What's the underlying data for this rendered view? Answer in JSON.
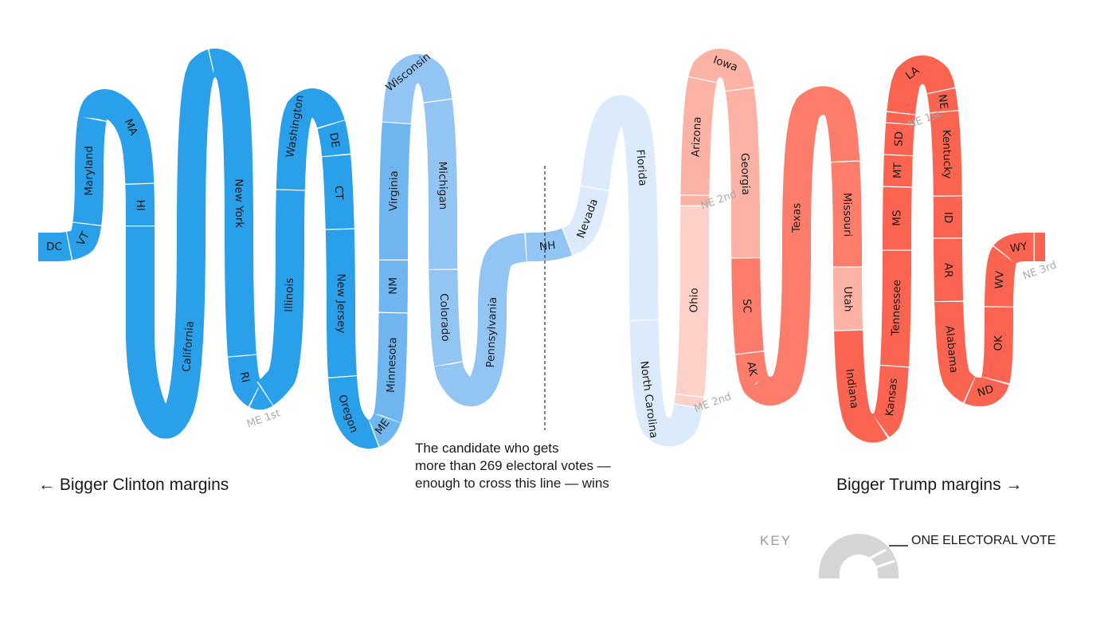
{
  "captions": {
    "left": "← Bigger Clinton margins",
    "right": "Bigger Trump margins →",
    "note": [
      "The candidate who gets",
      "more than 269 electoral votes —",
      "enough to cross this line — wins"
    ]
  },
  "key": {
    "label": "KEY",
    "one_vote": "ONE ELECTORAL VOTE"
  },
  "colors": {
    "dem_strong": "#2aa0ea",
    "dem_lean": "#6fb5ef",
    "dem_tilt": "#92c4f4",
    "tossup_dem": "#dcebfb",
    "tossup_rep": "#fdd0c8",
    "rep_tilt": "#fcb2a5",
    "rep_lean": "#fd7d6c",
    "rep_strong": "#fa6450",
    "key": "#d6d6d6"
  },
  "states": [
    {
      "name": "DC",
      "votes": 3,
      "color": "#2aa0ea"
    },
    {
      "name": "VT",
      "votes": 3,
      "color": "#2aa0ea"
    },
    {
      "name": "Maryland",
      "votes": 10,
      "color": "#2aa0ea"
    },
    {
      "name": "MA",
      "votes": 11,
      "color": "#2aa0ea"
    },
    {
      "name": "HI",
      "votes": 4,
      "color": "#2aa0ea"
    },
    {
      "name": "California",
      "votes": 55,
      "color": "#2aa0ea"
    },
    {
      "name": "New York",
      "votes": 29,
      "color": "#2aa0ea"
    },
    {
      "name": "RI",
      "votes": 4,
      "color": "#2aa0ea"
    },
    {
      "name": "ME 1st",
      "votes": 1,
      "color": "#2aa0ea"
    },
    {
      "name": "Illinois",
      "votes": 20,
      "color": "#2aa0ea"
    },
    {
      "name": "Washington",
      "votes": 12,
      "color": "#2aa0ea"
    },
    {
      "name": "DE",
      "votes": 3,
      "color": "#2aa0ea"
    },
    {
      "name": "CT",
      "votes": 7,
      "color": "#2aa0ea"
    },
    {
      "name": "New Jersey",
      "votes": 14,
      "color": "#2aa0ea"
    },
    {
      "name": "Oregon",
      "votes": 7,
      "color": "#2aa0ea"
    },
    {
      "name": "ME",
      "votes": 2,
      "color": "#6fb5ef"
    },
    {
      "name": "Minnesota",
      "votes": 10,
      "color": "#6fb5ef"
    },
    {
      "name": "NM",
      "votes": 5,
      "color": "#6fb5ef"
    },
    {
      "name": "Virginia",
      "votes": 13,
      "color": "#6fb5ef"
    },
    {
      "name": "Wisconsin",
      "votes": 10,
      "color": "#92c4f4"
    },
    {
      "name": "Michigan",
      "votes": 16,
      "color": "#92c4f4"
    },
    {
      "name": "Colorado",
      "votes": 9,
      "color": "#92c4f4"
    },
    {
      "name": "Pennsylvania",
      "votes": 20,
      "color": "#92c4f4"
    },
    {
      "name": "NH",
      "votes": 4,
      "color": "#92c4f4"
    },
    {
      "name": "Nevada",
      "votes": 6,
      "color": "#dcebfb"
    },
    {
      "name": "Florida",
      "votes": 29,
      "color": "#dcebfb"
    },
    {
      "name": "North Carolina",
      "votes": 15,
      "color": "#dcebfb"
    },
    {
      "name": "ME 2nd",
      "votes": 1,
      "color": "#fdd0c8"
    },
    {
      "name": "Ohio",
      "votes": 18,
      "color": "#fdd0c8"
    },
    {
      "name": "NE 2nd",
      "votes": 1,
      "color": "#fcb2a5"
    },
    {
      "name": "Arizona",
      "votes": 11,
      "color": "#fcb2a5"
    },
    {
      "name": "Iowa",
      "votes": 6,
      "color": "#fcb2a5"
    },
    {
      "name": "Georgia",
      "votes": 16,
      "color": "#fcb2a5"
    },
    {
      "name": "SC",
      "votes": 9,
      "color": "#fd7d6c"
    },
    {
      "name": "AK",
      "votes": 3,
      "color": "#fd7d6c"
    },
    {
      "name": "Texas",
      "votes": 38,
      "color": "#fd7d6c"
    },
    {
      "name": "Missouri",
      "votes": 10,
      "color": "#fd7d6c"
    },
    {
      "name": "Utah",
      "votes": 6,
      "color": "#fcb2a5"
    },
    {
      "name": "Indiana",
      "votes": 11,
      "color": "#fa6450"
    },
    {
      "name": "Kansas",
      "votes": 6,
      "color": "#fa6450"
    },
    {
      "name": "Tennessee",
      "votes": 11,
      "color": "#fa6450"
    },
    {
      "name": "MS",
      "votes": 6,
      "color": "#fa6450"
    },
    {
      "name": "MT",
      "votes": 3,
      "color": "#fa6450"
    },
    {
      "name": "SD",
      "votes": 3,
      "color": "#fa6450"
    },
    {
      "name": "NE 1st",
      "votes": 1,
      "color": "#fa6450"
    },
    {
      "name": "LA",
      "votes": 8,
      "color": "#fa6450"
    },
    {
      "name": "NE",
      "votes": 2,
      "color": "#fa6450"
    },
    {
      "name": "Kentucky",
      "votes": 8,
      "color": "#fa6450"
    },
    {
      "name": "ID",
      "votes": 4,
      "color": "#fa6450"
    },
    {
      "name": "AR",
      "votes": 6,
      "color": "#fa6450"
    },
    {
      "name": "Alabama",
      "votes": 9,
      "color": "#fa6450"
    },
    {
      "name": "ND",
      "votes": 3,
      "color": "#fa6450"
    },
    {
      "name": "OK",
      "votes": 7,
      "color": "#fa6450"
    },
    {
      "name": "WV",
      "votes": 5,
      "color": "#fa6450"
    },
    {
      "name": "WY",
      "votes": 3,
      "color": "#fa6450"
    },
    {
      "name": "NE 3rd",
      "votes": 1,
      "color": "#fa6450"
    }
  ]
}
